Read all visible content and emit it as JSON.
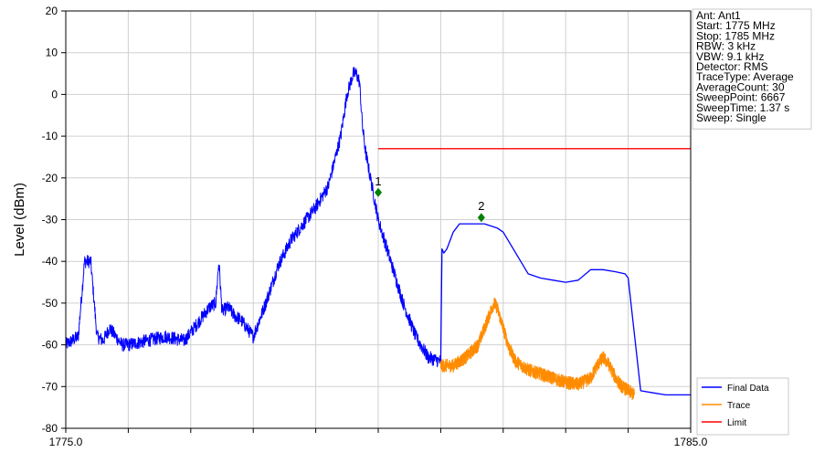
{
  "chart_data": {
    "type": "line",
    "xlabel": "",
    "ylabel": "Level (dBm)",
    "xlim": [
      1775.0,
      1785.0
    ],
    "ylim": [
      -80,
      20
    ],
    "x_ticks": [
      1775.0,
      1776,
      1777,
      1778,
      1779,
      1780,
      1781,
      1782,
      1783,
      1784,
      1785.0
    ],
    "x_tick_labels": [
      "1775.0",
      "1785.0"
    ],
    "y_ticks": [
      20,
      10,
      0,
      -10,
      -20,
      -30,
      -40,
      -50,
      -60,
      -70,
      -80
    ],
    "y_tick_labels": [
      "20",
      "10",
      "0",
      "-10",
      "-20",
      "-30",
      "-40",
      "-50",
      "-60",
      "-70",
      "-80"
    ],
    "grid": true,
    "legend_position": "bottom-right",
    "series": [
      {
        "name": "Final Data",
        "color": "#0000ff",
        "style": "noisy",
        "x": [
          1775.0,
          1775.1,
          1775.2,
          1775.3,
          1775.4,
          1775.5,
          1775.6,
          1775.7,
          1775.8,
          1775.9,
          1776.0,
          1776.3,
          1776.6,
          1776.9,
          1777.1,
          1777.3,
          1777.4,
          1777.45,
          1777.5,
          1777.6,
          1777.7,
          1777.8,
          1777.9,
          1778.0,
          1778.2,
          1778.4,
          1778.6,
          1778.8,
          1779.0,
          1779.2,
          1779.4,
          1779.5,
          1779.6,
          1779.65,
          1779.7,
          1779.75,
          1779.8,
          1779.9,
          1780.0,
          1780.2,
          1780.4,
          1780.6,
          1780.8,
          1781.0
        ],
        "y": [
          -60,
          -59,
          -58,
          -40,
          -40,
          -58,
          -59,
          -56,
          -58,
          -60,
          -60,
          -59,
          -58,
          -59,
          -55,
          -51,
          -50,
          -40,
          -52,
          -51,
          -53,
          -54,
          -56,
          -58,
          -50,
          -41,
          -35,
          -31,
          -27,
          -22,
          -10,
          0,
          5,
          5,
          3,
          -8,
          -14,
          -22,
          -30,
          -40,
          -50,
          -58,
          -63,
          -64
        ]
      },
      {
        "name": "Final Data",
        "color": "#0000ff",
        "style": "clean",
        "x": [
          1781.0,
          1781.02,
          1781.05,
          1781.1,
          1781.2,
          1781.3,
          1781.5,
          1781.7,
          1781.9,
          1782.0,
          1782.2,
          1782.4,
          1782.6,
          1782.8,
          1783.0,
          1783.2,
          1783.4,
          1783.6,
          1783.8,
          1783.95,
          1784.0,
          1784.2,
          1784.4,
          1784.6,
          1784.8,
          1785.0
        ],
        "y": [
          -64,
          -37,
          -38,
          -37,
          -33,
          -31,
          -31,
          -31,
          -32,
          -33,
          -38,
          -43,
          -44,
          -44.5,
          -45,
          -44.5,
          -42,
          -42,
          -42.5,
          -43,
          -44,
          -71,
          -71.5,
          -72,
          -72,
          -72
        ]
      },
      {
        "name": "Trace",
        "color": "#ff8c00",
        "style": "noisy",
        "x": [
          1781.0,
          1781.2,
          1781.4,
          1781.6,
          1781.7,
          1781.8,
          1781.85,
          1781.9,
          1782.0,
          1782.1,
          1782.2,
          1782.4,
          1782.6,
          1782.8,
          1783.0,
          1783.2,
          1783.4,
          1783.5,
          1783.6,
          1783.7,
          1783.8,
          1783.9,
          1784.0,
          1784.1
        ],
        "y": [
          -65,
          -65,
          -63,
          -60,
          -56,
          -52,
          -50,
          -51,
          -56,
          -61,
          -64,
          -66,
          -67,
          -68,
          -69,
          -69.5,
          -68,
          -65,
          -63,
          -65,
          -68,
          -70,
          -71,
          -72
        ]
      },
      {
        "name": "Limit",
        "color": "#ff0000",
        "style": "clean",
        "x": [
          1780.0,
          1785.0
        ],
        "y": [
          -13,
          -13
        ]
      }
    ],
    "legend": [
      {
        "label": "Final Data",
        "color": "#0000ff"
      },
      {
        "label": "Trace",
        "color": "#ff8c00"
      },
      {
        "label": "Limit",
        "color": "#ff0000"
      }
    ],
    "markers": [
      {
        "label": "1",
        "x": 1780.0,
        "y": -23.5,
        "color": "#008000"
      },
      {
        "label": "2",
        "x": 1781.65,
        "y": -29.5,
        "color": "#008000"
      }
    ]
  },
  "info_box": {
    "lines": [
      "Ant: Ant1",
      "Start: 1775 MHz",
      "Stop: 1785 MHz",
      "RBW: 3 kHz",
      "VBW: 9.1 kHz",
      "Detector: RMS",
      "TraceType: Average",
      "AverageCount: 30",
      "SweepPoint: 6667",
      "SweepTime: 1.37 s",
      "Sweep: Single"
    ]
  }
}
